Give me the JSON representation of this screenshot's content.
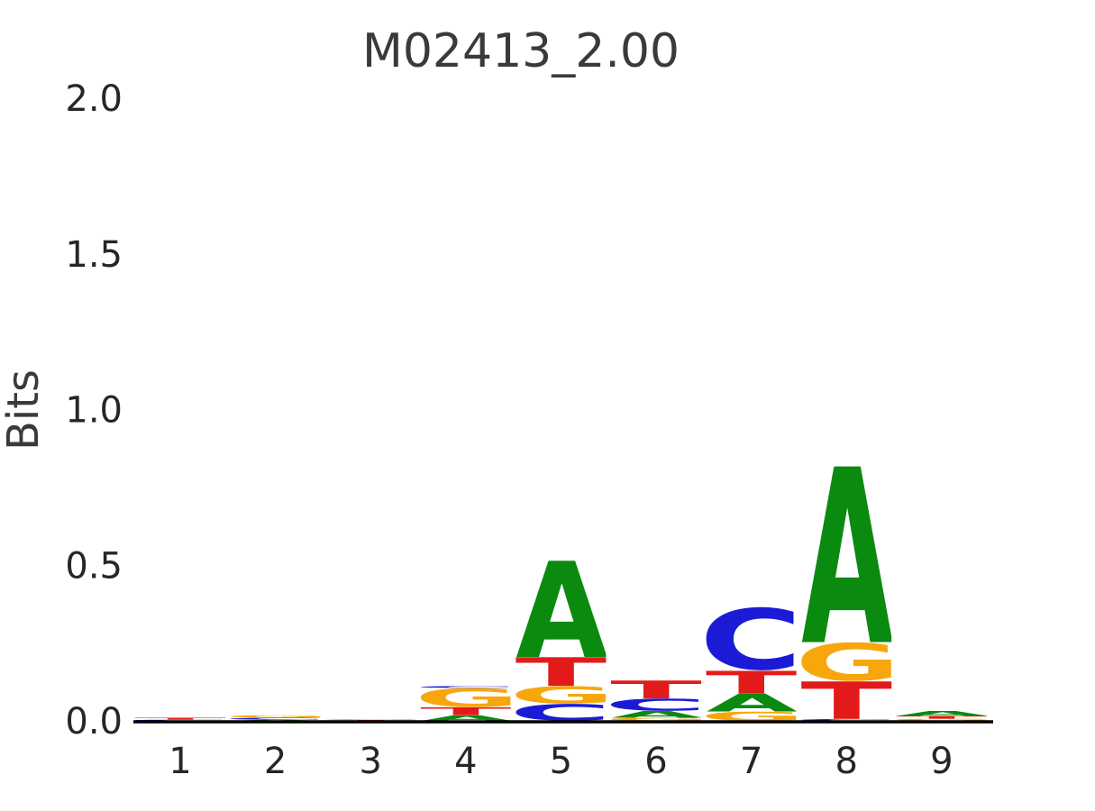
{
  "title": "M02413_2.00",
  "chart_data": {
    "type": "sequence_logo",
    "title": "M02413_2.00",
    "xlabel": "",
    "ylabel": "Bits",
    "ylim": [
      0,
      2.0
    ],
    "grid": false,
    "legend": "none",
    "yticks": [
      "0.0",
      "0.5",
      "1.0",
      "1.5",
      "2.0"
    ],
    "xticks": [
      "1",
      "2",
      "3",
      "4",
      "5",
      "6",
      "7",
      "8",
      "9"
    ],
    "colors": {
      "A": "#0a8a0f",
      "C": "#1b1bd6",
      "G": "#f7a70c",
      "T": "#e31a1a",
      "axis": "#000000",
      "text": "#3a3a3a",
      "tick_text": "#262626"
    },
    "stacks": [
      {
        "position": "1",
        "letters": [
          {
            "letter": "C",
            "bits": 0.004
          },
          {
            "letter": "T",
            "bits": 0.006
          }
        ]
      },
      {
        "position": "2",
        "letters": [
          {
            "letter": "A",
            "bits": 0.004
          },
          {
            "letter": "C",
            "bits": 0.006
          },
          {
            "letter": "G",
            "bits": 0.008
          }
        ]
      },
      {
        "position": "3",
        "letters": [
          {
            "letter": "T",
            "bits": 0.003
          },
          {
            "letter": "G",
            "bits": 0.003
          }
        ]
      },
      {
        "position": "4",
        "letters": [
          {
            "letter": "A",
            "bits": 0.018
          },
          {
            "letter": "T",
            "bits": 0.026
          },
          {
            "letter": "G",
            "bits": 0.062
          },
          {
            "letter": "C",
            "bits": 0.006
          }
        ]
      },
      {
        "position": "5",
        "letters": [
          {
            "letter": "C",
            "bits": 0.055
          },
          {
            "letter": "G",
            "bits": 0.057
          },
          {
            "letter": "T",
            "bits": 0.093
          },
          {
            "letter": "A",
            "bits": 0.31
          }
        ]
      },
      {
        "position": "6",
        "letters": [
          {
            "letter": "G",
            "bits": 0.01
          },
          {
            "letter": "A",
            "bits": 0.022
          },
          {
            "letter": "C",
            "bits": 0.04
          },
          {
            "letter": "T",
            "bits": 0.058
          }
        ]
      },
      {
        "position": "7",
        "letters": [
          {
            "letter": "G",
            "bits": 0.03
          },
          {
            "letter": "A",
            "bits": 0.058
          },
          {
            "letter": "T",
            "bits": 0.073
          },
          {
            "letter": "C",
            "bits": 0.205
          }
        ]
      },
      {
        "position": "8",
        "letters": [
          {
            "letter": "C",
            "bits": 0.006
          },
          {
            "letter": "T",
            "bits": 0.121
          },
          {
            "letter": "G",
            "bits": 0.126
          },
          {
            "letter": "A",
            "bits": 0.565
          }
        ]
      },
      {
        "position": "9",
        "letters": [
          {
            "letter": "G",
            "bits": 0.007
          },
          {
            "letter": "T",
            "bits": 0.009
          },
          {
            "letter": "A",
            "bits": 0.016
          }
        ]
      }
    ]
  }
}
